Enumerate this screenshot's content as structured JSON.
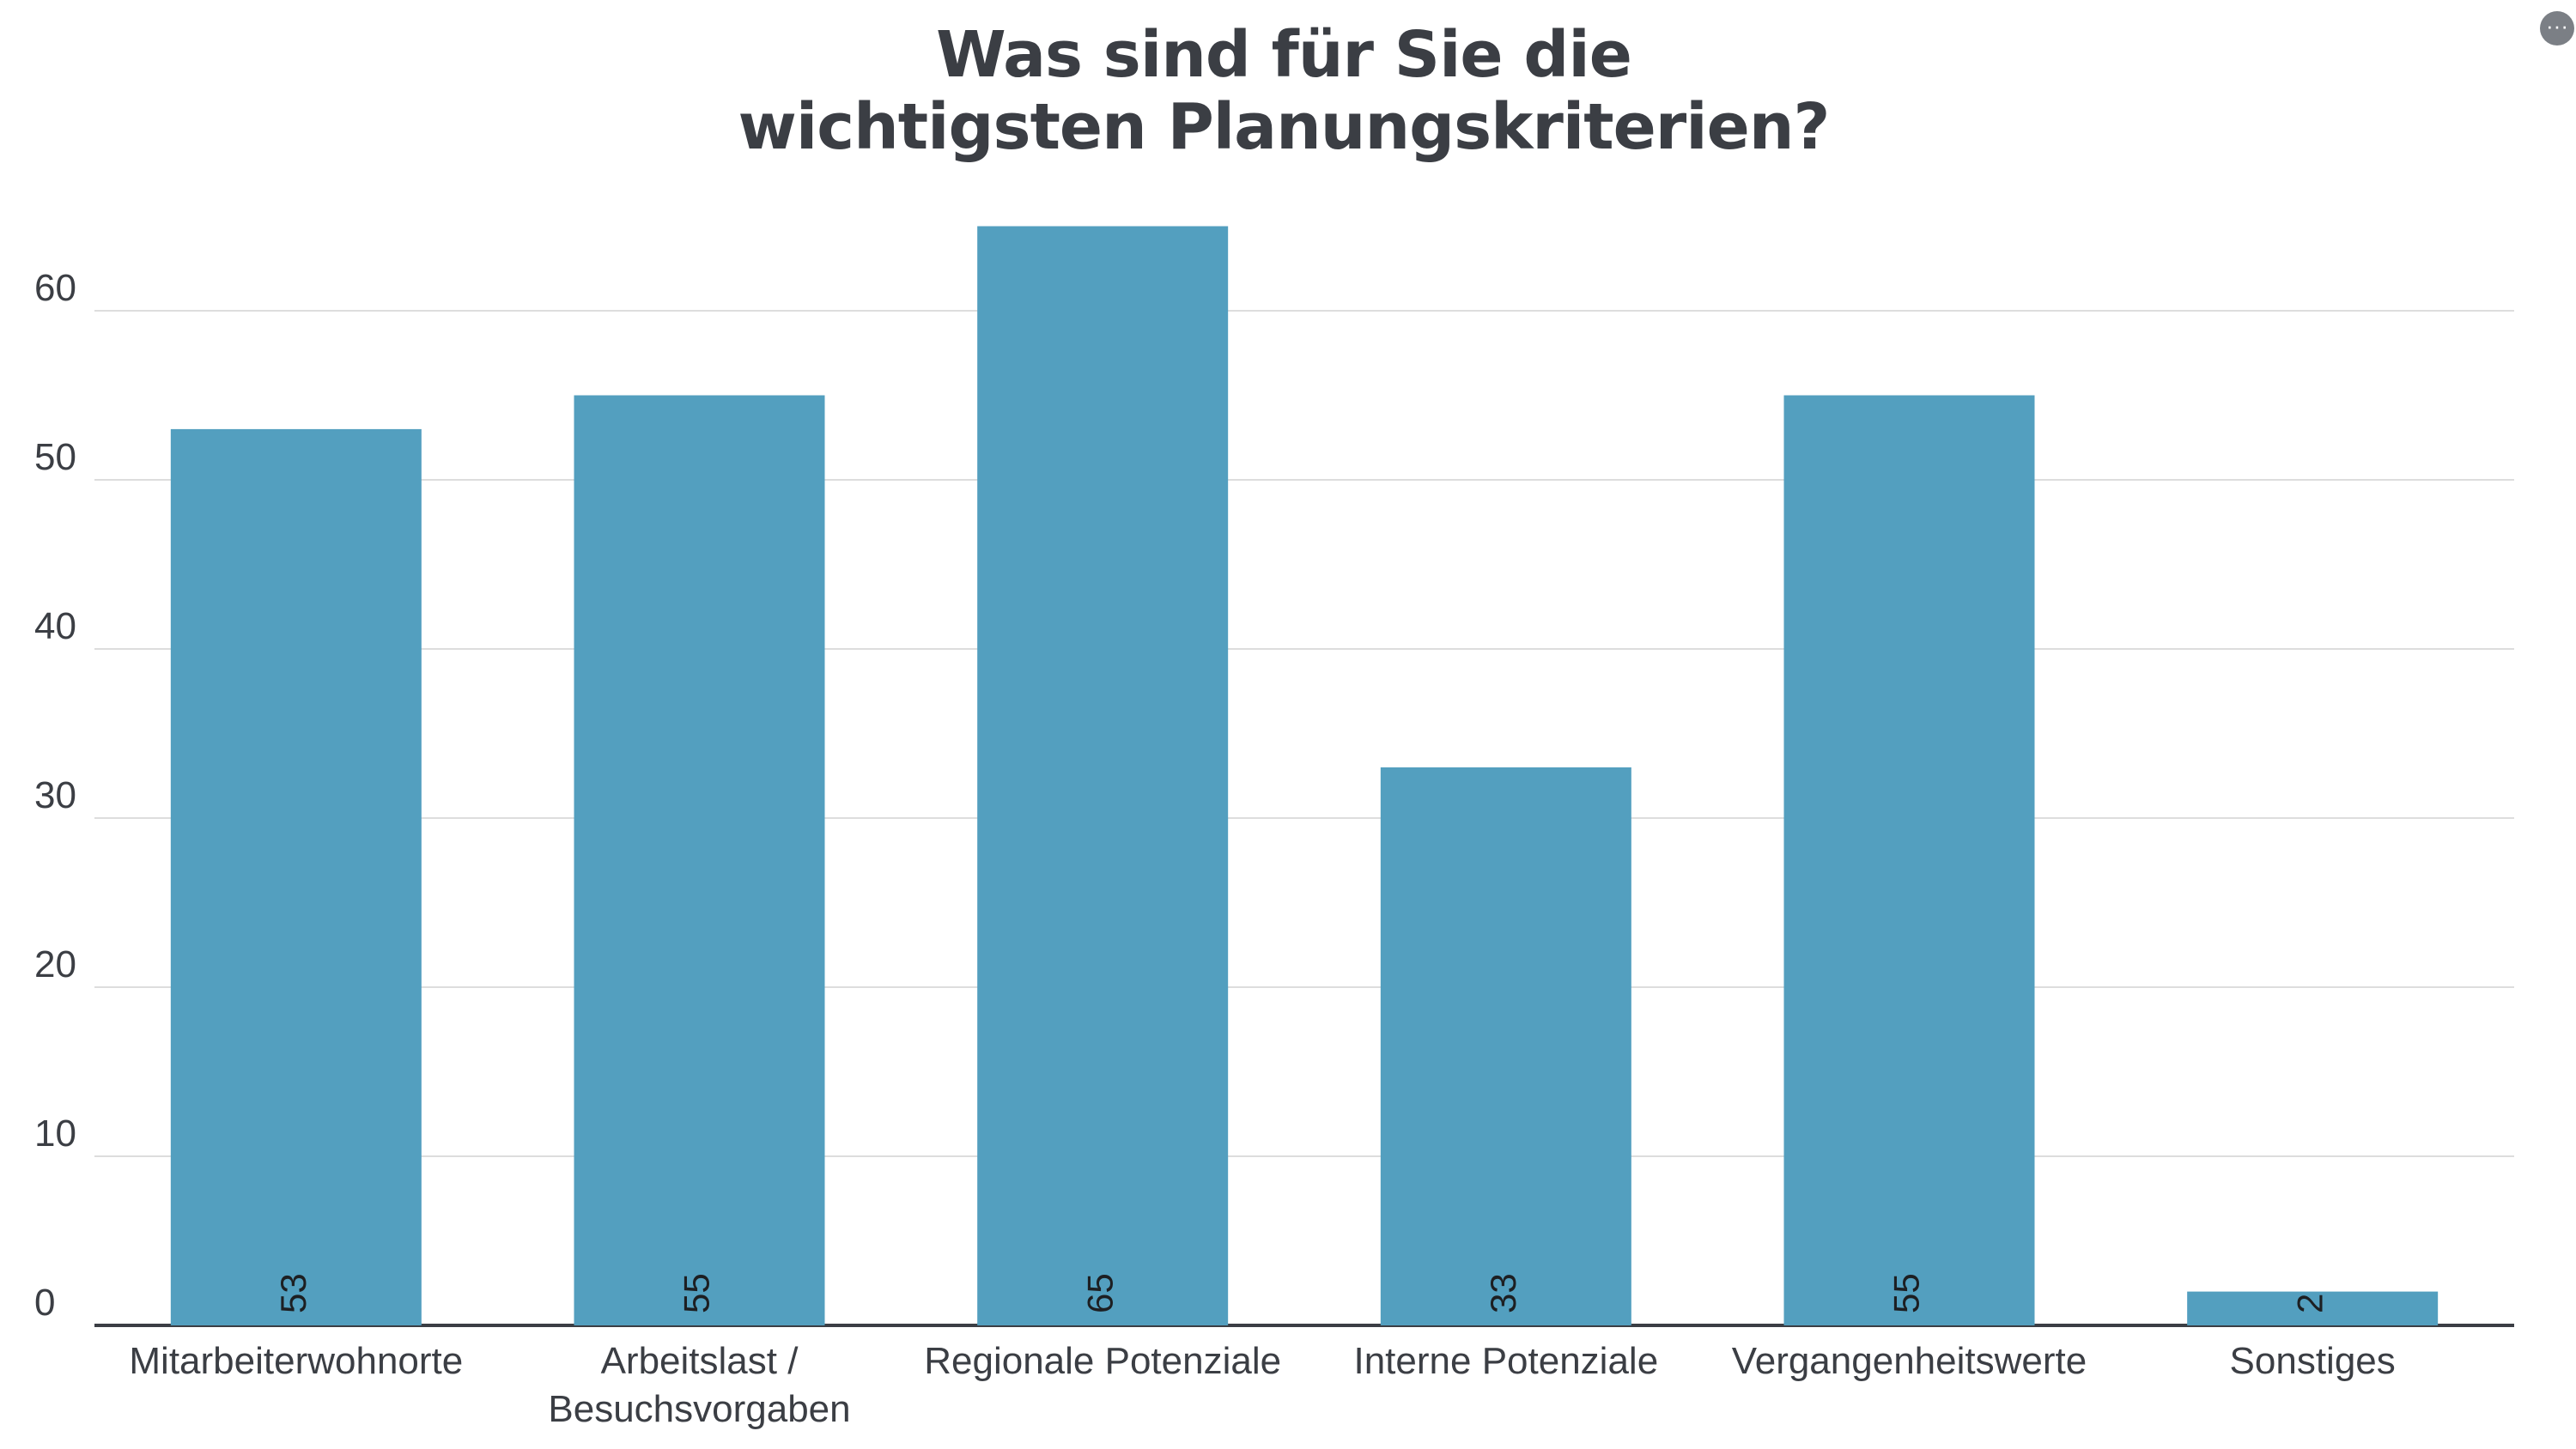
{
  "chart_data": {
    "type": "bar",
    "title": "Was sind für Sie die wichtigsten Planungskriterien?",
    "title_lines": [
      "Was sind für Sie die",
      "wichtigsten Planungskriterien?"
    ],
    "categories": [
      [
        "Mitarbeiterwohnorte"
      ],
      [
        "Arbeitslast /",
        "Besuchsvorgaben"
      ],
      [
        "Regionale Potenziale"
      ],
      [
        "Interne Potenziale"
      ],
      [
        "Vergangenheitswerte"
      ],
      [
        "Sonstiges"
      ]
    ],
    "values": [
      53,
      55,
      65,
      33,
      55,
      2
    ],
    "xlabel": "",
    "ylabel": "",
    "ylim": [
      0,
      65
    ],
    "yticks": [
      0,
      10,
      20,
      30,
      40,
      50,
      60
    ],
    "grid": true,
    "legend": "none",
    "bar_color": "#539fbf",
    "grid_color": "#dddddd",
    "axis_color": "#3b3e44"
  },
  "menu": {
    "icon": "ellipsis-icon",
    "label": "···"
  }
}
